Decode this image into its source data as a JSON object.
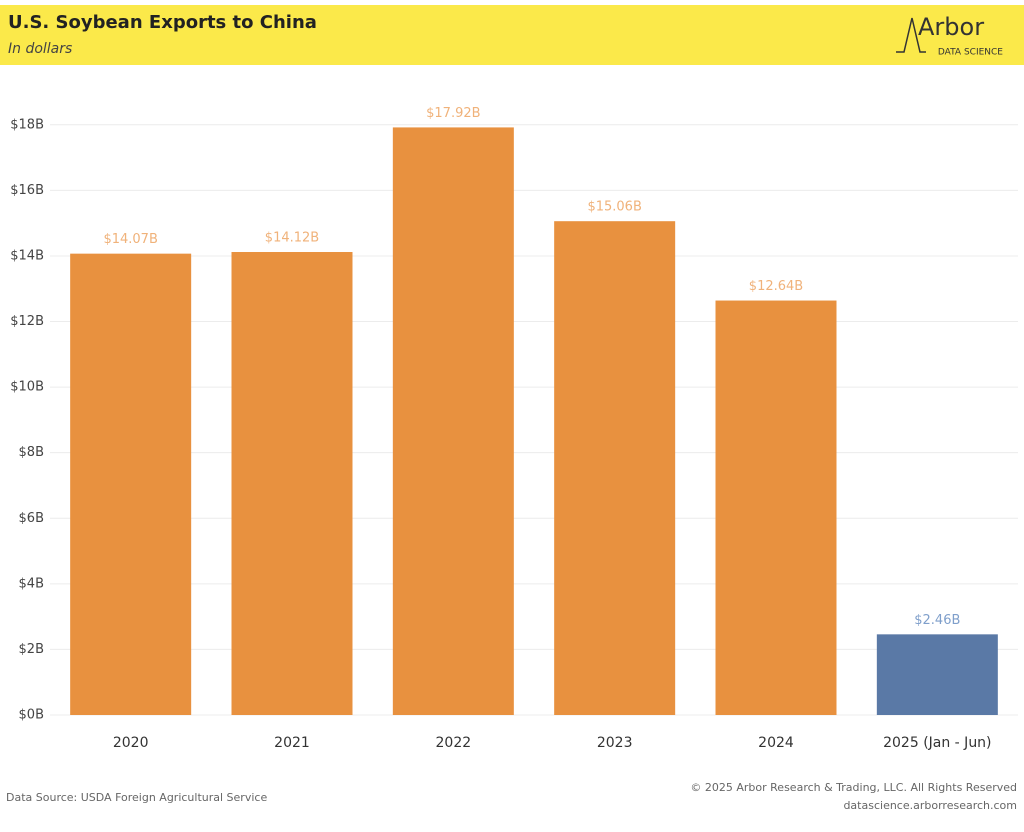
{
  "chart_data": {
    "type": "bar",
    "title": "U.S. Soybean Exports to China",
    "subtitle": "In dollars",
    "logo": {
      "name": "Arbor",
      "tagline": "DATA SCIENCE"
    },
    "categories": [
      "2020",
      "2021",
      "2022",
      "2023",
      "2024",
      "2025 (Jan - Jun)"
    ],
    "values": [
      14.07,
      14.12,
      17.92,
      15.06,
      12.64,
      2.46
    ],
    "value_labels": [
      "$14.07B",
      "$14.12B",
      "$17.92B",
      "$15.06B",
      "$12.64B",
      "$2.46B"
    ],
    "colors": [
      "#e8913f",
      "#e8913f",
      "#e8913f",
      "#e8913f",
      "#e8913f",
      "#5a79a6"
    ],
    "value_label_colors": [
      "#f0b27a",
      "#f0b27a",
      "#f0b27a",
      "#f0b27a",
      "#f0b27a",
      "#7f9fcb"
    ],
    "ylim": [
      0,
      19
    ],
    "yticks": [
      {
        "value": 0,
        "label": "$0B"
      },
      {
        "value": 2,
        "label": "$2B"
      },
      {
        "value": 4,
        "label": "$4B"
      },
      {
        "value": 6,
        "label": "$6B"
      },
      {
        "value": 8,
        "label": "$8B"
      },
      {
        "value": 10,
        "label": "$10B"
      },
      {
        "value": 12,
        "label": "$12B"
      },
      {
        "value": 14,
        "label": "$14B"
      },
      {
        "value": 16,
        "label": "$16B"
      },
      {
        "value": 18,
        "label": "$18B"
      }
    ],
    "grid": true,
    "source": "Data Source: USDA Foreign Agricultural Service",
    "copyright": "© 2025 Arbor Research & Trading, LLC. All Rights Reserved",
    "website": "datascience.arborresearch.com"
  }
}
